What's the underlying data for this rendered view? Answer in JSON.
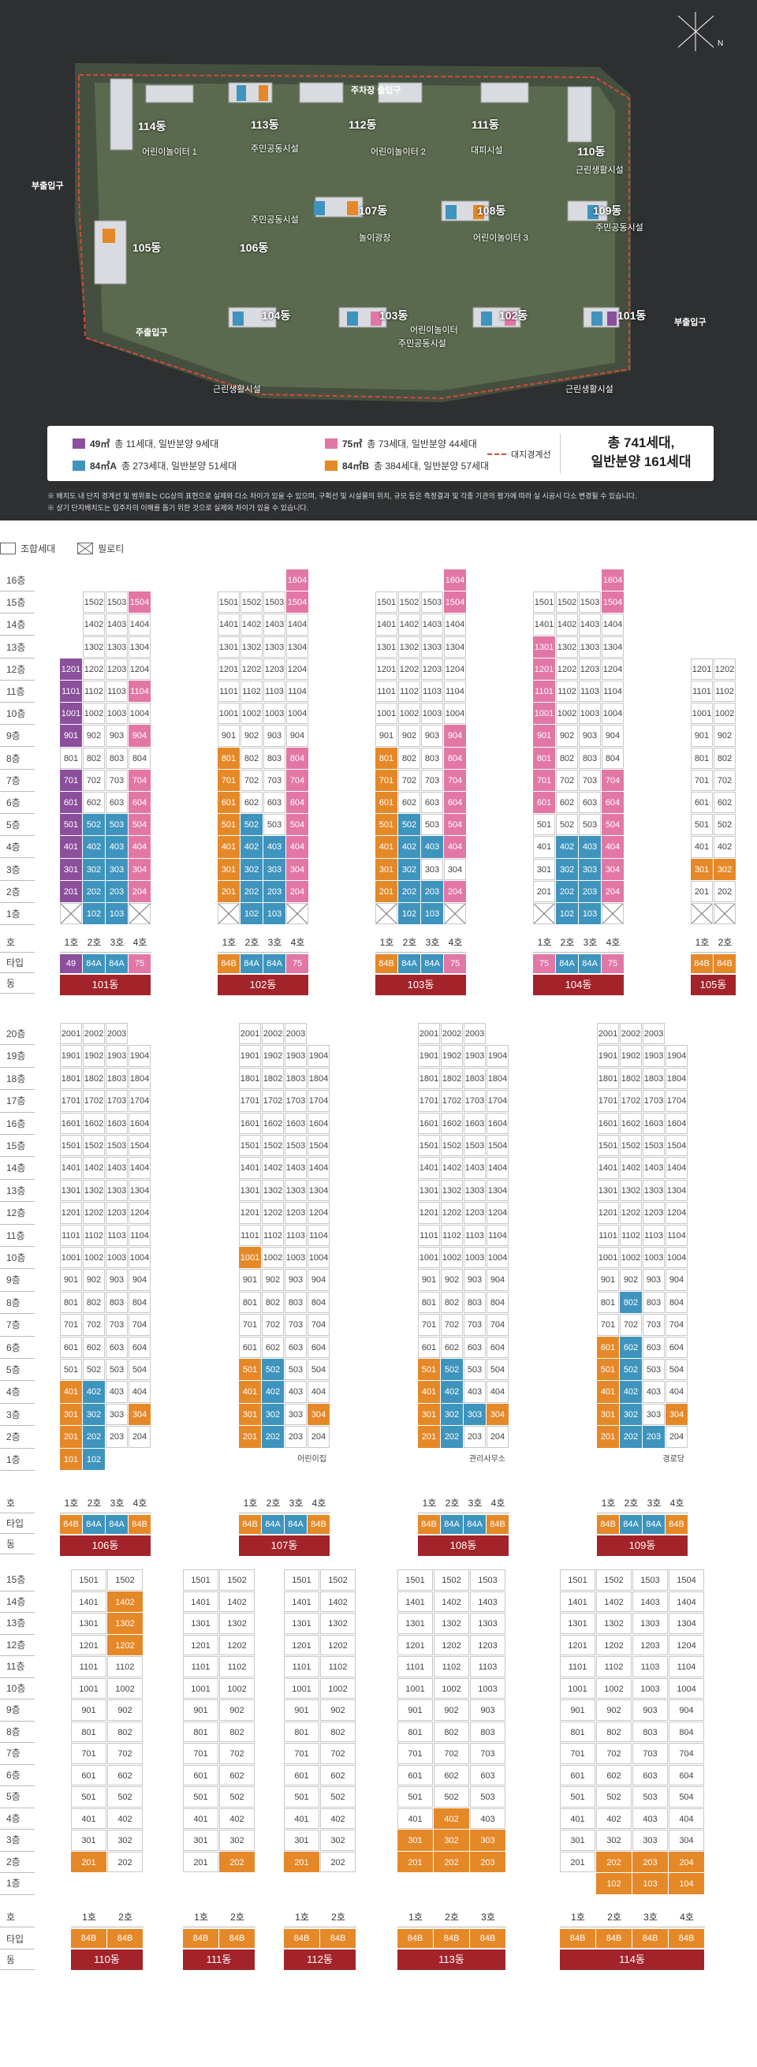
{
  "sitemap": {
    "entrances": {
      "parking": "주차장 출입구",
      "sub_left": "부출입구",
      "sub_right": "부출입구",
      "main": "주출입구"
    },
    "buildings": [
      "114동",
      "113동",
      "112동",
      "111동",
      "110동",
      "107동",
      "108동",
      "109동",
      "105동",
      "106동",
      "104동",
      "103동",
      "102동",
      "101동"
    ],
    "facilities": [
      "어린이놀이터 1",
      "주민공동시설",
      "어린이놀이터 2",
      "대피시설",
      "근린생활시설",
      "주민공동시설",
      "놀이광장",
      "어린이놀이터 3",
      "주민공동시설",
      "어린이놀이터",
      "주민공동시설",
      "근린생활시설",
      "근린생활시설"
    ]
  },
  "legend": {
    "items": [
      {
        "area": "49㎡",
        "text": "총 11세대, 일반분양 9세대",
        "color": "#8b4f9c"
      },
      {
        "area": "75㎡",
        "text": "총 73세대, 일반분양 44세대",
        "color": "#e277a5"
      },
      {
        "area": "84㎡A",
        "text": "총 273세대, 일반분양 51세대",
        "color": "#3e94bd"
      },
      {
        "area": "84㎡B",
        "text": "총 384세대, 일반분양 57세대",
        "color": "#e58828"
      }
    ],
    "boundary": "대지경계선",
    "total_line1": "총 741세대,",
    "total_line2": "일반분양 161세대"
  },
  "notes": [
    "※ 배치도 내 단지 경계선 및 범위표는 CG상의 표현으로 실제와 다소 차이가 있을 수 있으며, 구획선 및 시설물의 위치, 규모 등은 측정결과 및 각종 기관의 평가에 따라 실 시공시 다소 변경될 수 있습니다.",
    "※ 상기 단지배치도는 입주자의 이해를 돕기 위한 것으로 실제와 차이가 있을 수 있습니다."
  ],
  "key": {
    "union": "조합세대",
    "piloti": "필로티"
  },
  "labels": {
    "ho": "호",
    "type": "타입",
    "dong": "동"
  },
  "colors": {
    "49": "#8b4f9c",
    "84A": "#3e94bd",
    "75": "#e277a5",
    "84B": "#e58828",
    "dong": "#a3232a"
  },
  "sections": [
    {
      "floors": [
        "16층",
        "15층",
        "14층",
        "13층",
        "12층",
        "11층",
        "10층",
        "9층",
        "8층",
        "7층",
        "6층",
        "5층",
        "4층",
        "3층",
        "2층",
        "1층"
      ],
      "buildings": [
        {
          "dong": "101동",
          "ho": [
            "1호",
            "2호",
            "3호",
            "4호"
          ],
          "types": [
            "49",
            "84A",
            "84A",
            "75"
          ],
          "rows": [
            [
              null,
              null,
              null,
              null
            ],
            [
              "",
              "1502",
              "1503",
              "1504"
            ],
            [
              "",
              "1402",
              "1403",
              "1404"
            ],
            [
              "",
              "1302",
              "1303",
              "1304"
            ],
            [
              "1201",
              "1202",
              "1203",
              "1204"
            ],
            [
              "1101",
              "1102",
              "1103",
              "1104"
            ],
            [
              "1001",
              "1002",
              "1003",
              "1004"
            ],
            [
              "901",
              "902",
              "903",
              "904"
            ],
            [
              "801",
              "802",
              "803",
              "804"
            ],
            [
              "701",
              "702",
              "703",
              "704"
            ],
            [
              "601",
              "602",
              "603",
              "604"
            ],
            [
              "501",
              "502",
              "503",
              "504"
            ],
            [
              "401",
              "402",
              "403",
              "404"
            ],
            [
              "301",
              "302",
              "303",
              "304"
            ],
            [
              "201",
              "202",
              "203",
              "204"
            ],
            [
              "X",
              "102",
              "103",
              "X"
            ]
          ],
          "colored": [
            [
              "1504",
              2
            ],
            [
              "1201",
              0
            ],
            [
              "1101",
              0
            ],
            [
              "1104",
              3
            ],
            [
              "1001",
              0
            ],
            [
              "901",
              0
            ],
            [
              "704",
              3
            ],
            [
              "604",
              3
            ],
            [
              "504",
              3
            ],
            [
              "404",
              3
            ],
            [
              "304",
              3
            ],
            [
              "204",
              3
            ],
            [
              "201",
              0
            ],
            [
              "202",
              1
            ],
            [
              "203",
              1
            ],
            [
              "302",
              1
            ],
            [
              "303",
              1
            ],
            [
              "402",
              1
            ],
            [
              "403",
              1
            ],
            [
              "502",
              1
            ],
            [
              "503",
              1
            ],
            [
              "102",
              1
            ],
            [
              "103",
              1
            ],
            [
              "401",
              0
            ],
            [
              "301",
              0
            ],
            [
              "501",
              0
            ],
            [
              "601",
              0
            ],
            [
              "701",
              0
            ]
          ]
        },
        {
          "dong": "102동",
          "ho": [
            "1호",
            "2호",
            "3호",
            "4호"
          ],
          "types": [
            "84B",
            "84A",
            "84A",
            "75"
          ],
          "rows": [
            [
              null,
              null,
              null,
              "1604"
            ],
            [
              "1501",
              "1502",
              "1503",
              "1504"
            ],
            [
              "1401",
              "1402",
              "1403",
              "1404"
            ],
            [
              "1301",
              "1302",
              "1303",
              "1304"
            ],
            [
              "1201",
              "1202",
              "1203",
              "1204"
            ],
            [
              "1101",
              "1102",
              "1103",
              "1104"
            ],
            [
              "1001",
              "1002",
              "1003",
              "1004"
            ],
            [
              "901",
              "902",
              "903",
              "904"
            ],
            [
              "801",
              "802",
              "803",
              "804"
            ],
            [
              "701",
              "702",
              "703",
              "704"
            ],
            [
              "601",
              "602",
              "603",
              "604"
            ],
            [
              "501",
              "502",
              "503",
              "504"
            ],
            [
              "401",
              "402",
              "403",
              "404"
            ],
            [
              "301",
              "302",
              "303",
              "304"
            ],
            [
              "201",
              "202",
              "203",
              "204"
            ],
            [
              "X",
              "102",
              "103",
              "X"
            ]
          ]
        },
        {
          "dong": "103동",
          "ho": [
            "1호",
            "2호",
            "3호",
            "4호"
          ],
          "types": [
            "84B",
            "84A",
            "84A",
            "75"
          ],
          "rows": [
            [
              null,
              null,
              null,
              "1604"
            ],
            [
              "1501",
              "1502",
              "1503",
              "1504"
            ],
            [
              "1401",
              "1402",
              "1403",
              "1404"
            ],
            [
              "1301",
              "1302",
              "1303",
              "1304"
            ],
            [
              "1201",
              "1202",
              "1203",
              "1204"
            ],
            [
              "1101",
              "1102",
              "1103",
              "1104"
            ],
            [
              "1001",
              "1002",
              "1003",
              "1004"
            ],
            [
              "901",
              "902",
              "903",
              "904"
            ],
            [
              "801",
              "802",
              "803",
              "804"
            ],
            [
              "701",
              "702",
              "703",
              "704"
            ],
            [
              "601",
              "602",
              "603",
              "604"
            ],
            [
              "501",
              "502",
              "503",
              "504"
            ],
            [
              "401",
              "402",
              "403",
              "404"
            ],
            [
              "301",
              "302",
              "303",
              "304"
            ],
            [
              "201",
              "202",
              "203",
              "204"
            ],
            [
              "X",
              "102",
              "103",
              "X"
            ]
          ]
        },
        {
          "dong": "104동",
          "ho": [
            "1호",
            "2호",
            "3호",
            "4호"
          ],
          "types": [
            "75",
            "84A",
            "84A",
            "75"
          ],
          "rows": [
            [
              null,
              null,
              null,
              "1604"
            ],
            [
              "1501",
              "1502",
              "1503",
              "1504"
            ],
            [
              "1401",
              "1402",
              "1403",
              "1404"
            ],
            [
              "1301",
              "1302",
              "1303",
              "1304"
            ],
            [
              "1201",
              "1202",
              "1203",
              "1204"
            ],
            [
              "1101",
              "1102",
              "1103",
              "1104"
            ],
            [
              "1001",
              "1002",
              "1003",
              "1004"
            ],
            [
              "901",
              "902",
              "903",
              "904"
            ],
            [
              "801",
              "802",
              "803",
              "804"
            ],
            [
              "701",
              "702",
              "703",
              "704"
            ],
            [
              "601",
              "602",
              "603",
              "604"
            ],
            [
              "501",
              "502",
              "503",
              "504"
            ],
            [
              "401",
              "402",
              "403",
              "404"
            ],
            [
              "301",
              "302",
              "303",
              "304"
            ],
            [
              "201",
              "202",
              "203",
              "204"
            ],
            [
              "X",
              "102",
              "103",
              "X"
            ]
          ]
        },
        {
          "dong": "105동",
          "ho": [
            "1호",
            "2호"
          ],
          "types": [
            "84B",
            "84B"
          ],
          "rows": [
            [
              null,
              null
            ],
            [
              null,
              null
            ],
            [
              null,
              null
            ],
            [
              null,
              null
            ],
            [
              "1201",
              "1202"
            ],
            [
              "1101",
              "1102"
            ],
            [
              "1001",
              "1002"
            ],
            [
              "901",
              "902"
            ],
            [
              "801",
              "802"
            ],
            [
              "701",
              "702"
            ],
            [
              "601",
              "602"
            ],
            [
              "501",
              "502"
            ],
            [
              "401",
              "402"
            ],
            [
              "301",
              "302"
            ],
            [
              "201",
              "202"
            ],
            [
              "X",
              "X"
            ]
          ]
        }
      ]
    },
    {
      "floors": [
        "20층",
        "19층",
        "18층",
        "17층",
        "16층",
        "15층",
        "14층",
        "13층",
        "12층",
        "11층",
        "10층",
        "9층",
        "8층",
        "7층",
        "6층",
        "5층",
        "4층",
        "3층",
        "2층",
        "1층"
      ],
      "buildings": [
        {
          "dong": "106동",
          "ho": [
            "1호",
            "2호",
            "3호",
            "4호"
          ],
          "types": [
            "84B",
            "84A",
            "84A",
            "84B"
          ],
          "facility": ""
        },
        {
          "dong": "107동",
          "ho": [
            "1호",
            "2호",
            "3호",
            "4호"
          ],
          "types": [
            "84B",
            "84A",
            "84A",
            "84B"
          ],
          "facility": "어린이집"
        },
        {
          "dong": "108동",
          "ho": [
            "1호",
            "2호",
            "3호",
            "4호"
          ],
          "types": [
            "84B",
            "84A",
            "84A",
            "84B"
          ],
          "facility": "관리사무소"
        },
        {
          "dong": "109동",
          "ho": [
            "1호",
            "2호",
            "3호",
            "4호"
          ],
          "types": [
            "84B",
            "84A",
            "84A",
            "84B"
          ],
          "facility": "경로당"
        }
      ]
    },
    {
      "floors": [
        "15층",
        "14층",
        "13층",
        "12층",
        "11층",
        "10층",
        "9층",
        "8층",
        "7층",
        "6층",
        "5층",
        "4층",
        "3층",
        "2층",
        "1층"
      ],
      "buildings": [
        {
          "dong": "110동",
          "ho": [
            "1호",
            "2호"
          ],
          "types": [
            "84B",
            "84B"
          ]
        },
        {
          "dong": "111동",
          "ho": [
            "1호",
            "2호"
          ],
          "types": [
            "84B",
            "84B"
          ]
        },
        {
          "dong": "112동",
          "ho": [
            "1호",
            "2호"
          ],
          "types": [
            "84B",
            "84B"
          ]
        },
        {
          "dong": "113동",
          "ho": [
            "1호",
            "2호",
            "3호"
          ],
          "types": [
            "84B",
            "84B",
            "84B"
          ]
        },
        {
          "dong": "114동",
          "ho": [
            "1호",
            "2호",
            "3호",
            "4호"
          ],
          "types": [
            "84B",
            "84B",
            "84B",
            "84B"
          ]
        }
      ]
    }
  ]
}
